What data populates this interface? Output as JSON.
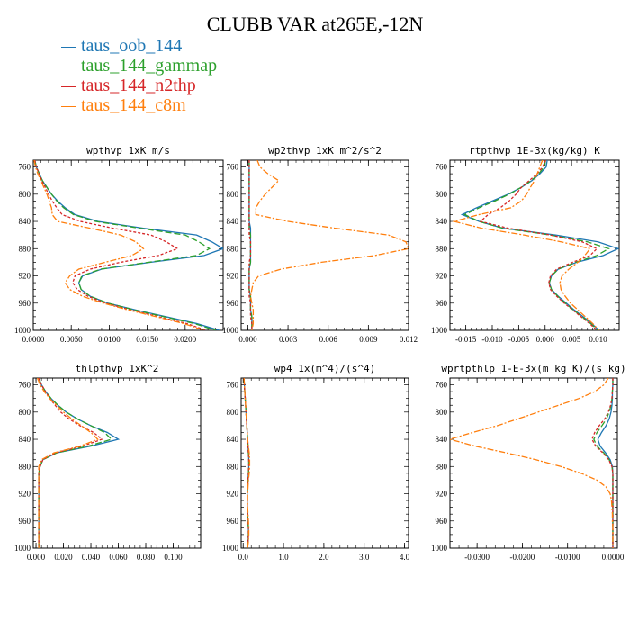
{
  "title": "CLUBB VAR at265E,-12N",
  "legend": [
    {
      "name": "taus_oob_144",
      "color": "#1f77b4"
    },
    {
      "name": "taus_144_gammap",
      "color": "#2ca02c"
    },
    {
      "name": "taus_144_n2thp",
      "color": "#d62728"
    },
    {
      "name": "taus_144_c8m",
      "color": "#ff7f0e"
    }
  ],
  "chart_data": [
    {
      "type": "line",
      "title": "wpthvp  1xK m/s",
      "xlim": [
        0,
        0.025
      ],
      "xticks": [
        0,
        0.005,
        0.01,
        0.015,
        0.02
      ],
      "xtick_labels": [
        "0.0000",
        "0.0050",
        "0.0100",
        "0.0150",
        "0.0200"
      ],
      "ylim": [
        1000,
        750
      ],
      "yticks": [
        760,
        800,
        840,
        880,
        920,
        960,
        1000
      ],
      "y": [
        750,
        760,
        770,
        780,
        790,
        800,
        810,
        820,
        830,
        840,
        850,
        860,
        870,
        880,
        890,
        900,
        910,
        920,
        930,
        940,
        950,
        960,
        970,
        980,
        990,
        1000
      ],
      "series": [
        {
          "name": "taus_oob_144",
          "values": [
            0.0002,
            0.0004,
            0.0008,
            0.0012,
            0.0018,
            0.0024,
            0.0032,
            0.0042,
            0.0055,
            0.0085,
            0.0145,
            0.0215,
            0.0235,
            0.025,
            0.0225,
            0.0155,
            0.009,
            0.0065,
            0.006,
            0.0063,
            0.0075,
            0.0098,
            0.0135,
            0.0175,
            0.0215,
            0.0245
          ]
        },
        {
          "name": "taus_144_gammap",
          "values": [
            0.0002,
            0.0004,
            0.0008,
            0.0012,
            0.0018,
            0.0024,
            0.0031,
            0.004,
            0.0053,
            0.0082,
            0.014,
            0.02,
            0.0218,
            0.0232,
            0.0215,
            0.0152,
            0.0089,
            0.0064,
            0.006,
            0.0063,
            0.0075,
            0.0098,
            0.0133,
            0.0172,
            0.0212,
            0.024
          ]
        },
        {
          "name": "taus_144_n2thp",
          "values": [
            0.0002,
            0.0004,
            0.0008,
            0.0011,
            0.0016,
            0.002,
            0.0025,
            0.0031,
            0.0038,
            0.0062,
            0.0105,
            0.0155,
            0.0175,
            0.019,
            0.0165,
            0.0115,
            0.0075,
            0.0055,
            0.0052,
            0.0058,
            0.0072,
            0.0095,
            0.0128,
            0.0165,
            0.0202,
            0.0228
          ]
        },
        {
          "name": "taus_144_c8m",
          "values": [
            0.0001,
            0.0003,
            0.0006,
            0.001,
            0.0014,
            0.0018,
            0.0021,
            0.0024,
            0.0025,
            0.0032,
            0.0075,
            0.0115,
            0.0135,
            0.0145,
            0.013,
            0.0095,
            0.006,
            0.0048,
            0.0042,
            0.0048,
            0.0065,
            0.0092,
            0.0125,
            0.0162,
            0.0198,
            0.0225
          ]
        }
      ]
    },
    {
      "type": "line",
      "title": "wp2thvp  1xK m^2/s^2",
      "xlim": [
        -0.0005,
        0.012
      ],
      "xticks": [
        0,
        0.003,
        0.006,
        0.009,
        0.012
      ],
      "xtick_labels": [
        "0.000",
        "0.003",
        "0.006",
        "0.009",
        "0.012"
      ],
      "ylim": [
        1000,
        750
      ],
      "yticks": [
        760,
        800,
        840,
        880,
        920,
        960,
        1000
      ],
      "y": [
        750,
        760,
        770,
        780,
        790,
        800,
        810,
        820,
        830,
        840,
        850,
        860,
        870,
        880,
        890,
        900,
        910,
        920,
        930,
        940,
        950,
        960,
        970,
        980,
        990,
        1000
      ],
      "series": [
        {
          "name": "taus_oob_144",
          "values": [
            0.0001,
            0.0001,
            0.0001,
            0.0001,
            0.0001,
            0.0001,
            0.0001,
            0.0001,
            0.0001,
            0.0001,
            0.0002,
            0.0002,
            0.0002,
            0.0002,
            0.0002,
            0.0002,
            0.0001,
            0.0001,
            0.0001,
            0.0001,
            0.0002,
            0.0002,
            0.0002,
            0.0003,
            0.0003,
            0.0003
          ]
        },
        {
          "name": "taus_144_gammap",
          "values": [
            0.0001,
            0.0001,
            0.0001,
            0.0001,
            0.0001,
            0.0001,
            0.0001,
            0.0001,
            0.0001,
            0.0001,
            0.0001,
            0.0002,
            0.0002,
            0.0002,
            0.0002,
            0.0002,
            0.0001,
            0.0001,
            0.0001,
            0.0001,
            0.0002,
            0.0002,
            0.0002,
            0.0003,
            0.0003,
            0.0003
          ]
        },
        {
          "name": "taus_144_n2thp",
          "values": [
            0.0001,
            0.0001,
            0.0001,
            0.0001,
            0.0001,
            0.0001,
            0.0001,
            0.0001,
            0.0001,
            0.0001,
            0.0001,
            0.0001,
            0.0002,
            0.0002,
            0.0002,
            0.0001,
            0.0001,
            0.0001,
            0.0001,
            0.0001,
            0.0001,
            0.0002,
            0.0002,
            0.0002,
            0.0003,
            0.0003
          ]
        },
        {
          "name": "taus_144_c8m",
          "values": [
            0.0007,
            0.0009,
            0.0015,
            0.0023,
            0.0018,
            0.0013,
            0.0009,
            0.0006,
            0.0006,
            0.003,
            0.0065,
            0.0105,
            0.0118,
            0.012,
            0.0095,
            0.0055,
            0.0025,
            0.0008,
            0.0004,
            0.0003,
            0.0002,
            0.0003,
            0.0004,
            0.0004,
            0.0004,
            0.0003
          ]
        }
      ]
    },
    {
      "type": "line",
      "title": "rtpthvp  1E-3x(kg/kg) K",
      "xlim": [
        -0.018,
        0.014
      ],
      "xticks": [
        -0.015,
        -0.01,
        -0.005,
        0,
        0.005,
        0.01
      ],
      "xtick_labels": [
        "-0.015",
        "-0.010",
        "-0.005",
        "0.000",
        "0.005",
        "0.010"
      ],
      "ylim": [
        1000,
        750
      ],
      "yticks": [
        760,
        800,
        840,
        880,
        920,
        960,
        1000
      ],
      "y": [
        750,
        760,
        770,
        780,
        790,
        800,
        810,
        820,
        830,
        840,
        850,
        860,
        870,
        880,
        890,
        900,
        910,
        920,
        930,
        940,
        950,
        960,
        970,
        980,
        990,
        1000
      ],
      "series": [
        {
          "name": "taus_oob_144",
          "values": [
            0.0004,
            0.0002,
            -0.001,
            -0.0025,
            -0.0045,
            -0.007,
            -0.01,
            -0.013,
            -0.0157,
            -0.0125,
            -0.008,
            0.002,
            0.01,
            0.0138,
            0.011,
            0.006,
            0.0025,
            0.0012,
            0.0008,
            0.0012,
            0.0025,
            0.004,
            0.0055,
            0.0072,
            0.0088,
            0.0102
          ]
        },
        {
          "name": "taus_144_gammap",
          "values": [
            0.0001,
            -0.0002,
            -0.0012,
            -0.0026,
            -0.0045,
            -0.0068,
            -0.0095,
            -0.0125,
            -0.0152,
            -0.0125,
            -0.008,
            0.001,
            0.008,
            0.012,
            0.0098,
            0.0058,
            0.0025,
            0.0012,
            0.0008,
            0.0012,
            0.0024,
            0.0038,
            0.0053,
            0.007,
            0.0086,
            0.01
          ]
        },
        {
          "name": "taus_144_n2thp",
          "values": [
            0.0001,
            -0.0005,
            -0.0015,
            -0.003,
            -0.0045,
            -0.0055,
            -0.0068,
            -0.0085,
            -0.0108,
            -0.0122,
            -0.007,
            0.001,
            0.007,
            0.0098,
            0.0085,
            0.0052,
            0.0022,
            0.001,
            0.0007,
            0.001,
            0.0022,
            0.0036,
            0.0052,
            0.0068,
            0.0084,
            0.0098
          ]
        },
        {
          "name": "taus_144_c8m",
          "values": [
            -0.0005,
            -0.001,
            -0.0015,
            -0.002,
            -0.0028,
            -0.0035,
            -0.0045,
            -0.0065,
            -0.0125,
            -0.0172,
            -0.012,
            -0.004,
            0.003,
            0.0085,
            0.0075,
            0.0062,
            0.0045,
            0.0032,
            0.0028,
            0.003,
            0.0038,
            0.0048,
            0.0062,
            0.0076,
            0.009,
            0.0102
          ]
        }
      ]
    },
    {
      "type": "line",
      "title": "thlpthvp  1xK^2",
      "xlim": [
        -0.002,
        0.12
      ],
      "xticks": [
        0,
        0.02,
        0.04,
        0.06,
        0.08,
        0.1
      ],
      "xtick_labels": [
        "0.000",
        "0.020",
        "0.040",
        "0.060",
        "0.080",
        "0.100"
      ],
      "ylim": [
        1000,
        750
      ],
      "yticks": [
        760,
        800,
        840,
        880,
        920,
        960,
        1000
      ],
      "y": [
        750,
        760,
        770,
        780,
        790,
        800,
        810,
        820,
        830,
        840,
        850,
        860,
        870,
        880,
        890,
        900,
        910,
        920,
        930,
        940,
        950,
        960,
        970,
        980,
        990,
        1000
      ],
      "series": [
        {
          "name": "taus_oob_144",
          "values": [
            0.002,
            0.004,
            0.007,
            0.011,
            0.016,
            0.022,
            0.03,
            0.04,
            0.052,
            0.06,
            0.04,
            0.015,
            0.005,
            0.003,
            0.002,
            0.002,
            0.002,
            0.002,
            0.002,
            0.002,
            0.002,
            0.002,
            0.002,
            0.002,
            0.002,
            0.002
          ]
        },
        {
          "name": "taus_144_gammap",
          "values": [
            0.002,
            0.004,
            0.007,
            0.011,
            0.016,
            0.022,
            0.03,
            0.04,
            0.05,
            0.055,
            0.038,
            0.015,
            0.005,
            0.003,
            0.002,
            0.002,
            0.002,
            0.002,
            0.002,
            0.002,
            0.002,
            0.002,
            0.002,
            0.002,
            0.002,
            0.002
          ]
        },
        {
          "name": "taus_144_n2thp",
          "values": [
            0.002,
            0.004,
            0.007,
            0.01,
            0.014,
            0.018,
            0.024,
            0.032,
            0.042,
            0.048,
            0.034,
            0.014,
            0.005,
            0.003,
            0.002,
            0.002,
            0.002,
            0.002,
            0.002,
            0.002,
            0.002,
            0.002,
            0.002,
            0.002,
            0.002,
            0.002
          ]
        },
        {
          "name": "taus_144_c8m",
          "values": [
            0.001,
            0.003,
            0.006,
            0.01,
            0.015,
            0.02,
            0.026,
            0.033,
            0.04,
            0.045,
            0.032,
            0.013,
            0.004,
            0.002,
            0.002,
            0.002,
            0.002,
            0.002,
            0.002,
            0.002,
            0.002,
            0.002,
            0.002,
            0.002,
            0.002,
            0.002
          ]
        }
      ]
    },
    {
      "type": "line",
      "title": "wp4  1x(m^4)/(s^4)",
      "xlim": [
        -0.05,
        4.1
      ],
      "xticks": [
        0,
        1,
        2,
        3,
        4
      ],
      "xtick_labels": [
        "0.0",
        "1.0",
        "2.0",
        "3.0",
        "4.0"
      ],
      "ylim": [
        1000,
        750
      ],
      "yticks": [
        760,
        800,
        840,
        880,
        920,
        960,
        1000
      ],
      "y": [
        750,
        760,
        770,
        780,
        790,
        800,
        810,
        820,
        830,
        840,
        850,
        860,
        870,
        880,
        890,
        900,
        910,
        920,
        930,
        940,
        950,
        960,
        970,
        980,
        990,
        1000
      ],
      "series": [
        {
          "name": "taus_oob_144",
          "values": [
            0.02,
            0.03,
            0.04,
            0.05,
            0.06,
            0.07,
            0.08,
            0.09,
            0.1,
            0.11,
            0.12,
            0.13,
            0.14,
            0.14,
            0.13,
            0.12,
            0.11,
            0.1,
            0.1,
            0.1,
            0.11,
            0.12,
            0.13,
            0.13,
            0.12,
            0.1
          ]
        },
        {
          "name": "taus_144_gammap",
          "values": [
            0.02,
            0.03,
            0.04,
            0.05,
            0.06,
            0.07,
            0.08,
            0.09,
            0.1,
            0.11,
            0.12,
            0.13,
            0.14,
            0.14,
            0.13,
            0.12,
            0.11,
            0.1,
            0.1,
            0.1,
            0.11,
            0.12,
            0.13,
            0.13,
            0.12,
            0.1
          ]
        },
        {
          "name": "taus_144_n2thp",
          "values": [
            0.02,
            0.03,
            0.04,
            0.05,
            0.06,
            0.07,
            0.08,
            0.09,
            0.1,
            0.11,
            0.12,
            0.13,
            0.14,
            0.14,
            0.13,
            0.12,
            0.11,
            0.1,
            0.1,
            0.1,
            0.11,
            0.12,
            0.13,
            0.13,
            0.12,
            0.1
          ]
        },
        {
          "name": "taus_144_c8m",
          "values": [
            0.02,
            0.03,
            0.04,
            0.05,
            0.06,
            0.07,
            0.08,
            0.09,
            0.1,
            0.11,
            0.13,
            0.15,
            0.16,
            0.16,
            0.15,
            0.13,
            0.12,
            0.11,
            0.11,
            0.11,
            0.12,
            0.13,
            0.14,
            0.14,
            0.13,
            0.11
          ]
        }
      ]
    },
    {
      "type": "line",
      "title": "wprtpthlp  1-E-3x(m kg K)/(s kg)",
      "xlim": [
        -0.036,
        0.001
      ],
      "xticks": [
        -0.03,
        -0.02,
        -0.01,
        0
      ],
      "xtick_labels": [
        "-0.0300",
        "-0.0200",
        "-0.0100",
        "0.0000"
      ],
      "ylim": [
        1000,
        750
      ],
      "yticks": [
        760,
        800,
        840,
        880,
        920,
        960,
        1000
      ],
      "y": [
        750,
        760,
        770,
        780,
        790,
        800,
        810,
        820,
        830,
        840,
        850,
        860,
        870,
        880,
        890,
        900,
        910,
        920,
        930,
        940,
        950,
        960,
        970,
        980,
        990,
        1000
      ],
      "series": [
        {
          "name": "taus_oob_144",
          "values": [
            0,
            0,
            -0.0001,
            -0.0001,
            -0.0002,
            -0.0004,
            -0.0008,
            -0.0015,
            -0.0025,
            -0.0033,
            -0.0028,
            -0.0016,
            -0.0006,
            -0.0001,
            0,
            0,
            0,
            0,
            0,
            0,
            0,
            0,
            0,
            0,
            0,
            0
          ]
        },
        {
          "name": "taus_144_gammap",
          "values": [
            0,
            0,
            -0.0001,
            -0.0002,
            -0.0004,
            -0.0008,
            -0.0014,
            -0.0024,
            -0.0035,
            -0.0042,
            -0.0035,
            -0.002,
            -0.0008,
            -0.0002,
            0,
            0,
            0,
            0,
            0,
            0,
            0,
            0,
            0,
            0,
            0,
            0
          ]
        },
        {
          "name": "taus_144_n2thp",
          "values": [
            0,
            0,
            -0.0001,
            -0.0002,
            -0.0005,
            -0.001,
            -0.0018,
            -0.003,
            -0.004,
            -0.0046,
            -0.0038,
            -0.0022,
            -0.0009,
            -0.0002,
            0,
            0,
            0,
            0,
            0,
            0,
            0,
            0,
            0,
            0,
            0,
            0
          ]
        },
        {
          "name": "taus_144_c8m",
          "values": [
            -0.001,
            -0.002,
            -0.004,
            -0.0075,
            -0.012,
            -0.0165,
            -0.021,
            -0.0255,
            -0.031,
            -0.036,
            -0.0305,
            -0.0235,
            -0.017,
            -0.0115,
            -0.007,
            -0.0035,
            -0.0015,
            -0.0006,
            -0.0003,
            -0.0002,
            -0.0001,
            -0.0001,
            0,
            0,
            0,
            0
          ]
        }
      ]
    }
  ]
}
